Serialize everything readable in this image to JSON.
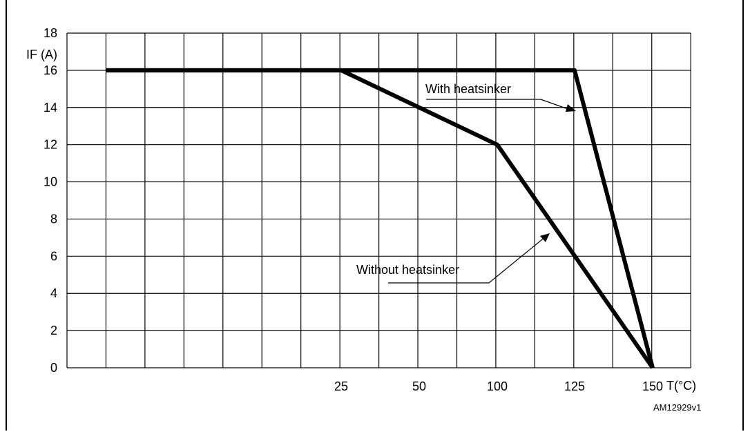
{
  "chart_data": {
    "type": "line",
    "ylabel": "IF (A)",
    "xlabel": "T(°C)",
    "code": "AM12929v1",
    "y_ticks": [
      "0",
      "2",
      "4",
      "6",
      "8",
      "10",
      "12",
      "14",
      "16",
      "18"
    ],
    "x_ticks": [
      "25",
      "50",
      "100",
      "125",
      "150"
    ],
    "ylim": [
      0,
      18
    ],
    "grid": true,
    "series": [
      {
        "label": "With heatsinker",
        "points": [
          [
            -50,
            16
          ],
          [
            125,
            16
          ],
          [
            150,
            0
          ]
        ]
      },
      {
        "label": "Without heatsinker",
        "points": [
          [
            -50,
            16
          ],
          [
            25,
            16
          ],
          [
            100,
            12
          ],
          [
            150,
            0
          ]
        ]
      }
    ]
  }
}
